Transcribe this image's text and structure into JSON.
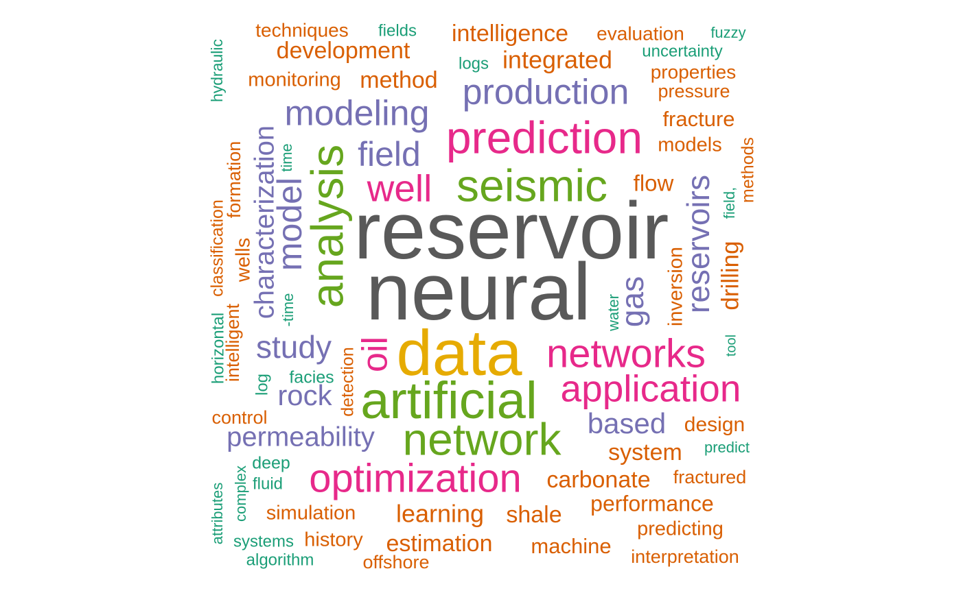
{
  "palette": {
    "gray": "#595959",
    "green": "#66a61e",
    "pink": "#e7298a",
    "purple": "#7570b3",
    "yellow": "#e6ab02",
    "orange": "#d95f02",
    "teal": "#1b9e77"
  },
  "words": [
    {
      "text": "reservoir",
      "color": "gray"
    },
    {
      "text": "neural",
      "color": "gray"
    },
    {
      "text": "data",
      "color": "yellow"
    },
    {
      "text": "artificial",
      "color": "green"
    },
    {
      "text": "network",
      "color": "green"
    },
    {
      "text": "seismic",
      "color": "green"
    },
    {
      "text": "analysis",
      "color": "green"
    },
    {
      "text": "prediction",
      "color": "pink"
    },
    {
      "text": "networks",
      "color": "pink"
    },
    {
      "text": "application",
      "color": "pink"
    },
    {
      "text": "optimization",
      "color": "pink"
    },
    {
      "text": "well",
      "color": "pink"
    },
    {
      "text": "oil",
      "color": "pink"
    },
    {
      "text": "production",
      "color": "purple"
    },
    {
      "text": "modeling",
      "color": "purple"
    },
    {
      "text": "field",
      "color": "purple"
    },
    {
      "text": "model",
      "color": "purple"
    },
    {
      "text": "characterization",
      "color": "purple"
    },
    {
      "text": "study",
      "color": "purple"
    },
    {
      "text": "rock",
      "color": "purple"
    },
    {
      "text": "permeability",
      "color": "purple"
    },
    {
      "text": "based",
      "color": "purple"
    },
    {
      "text": "reservoirs",
      "color": "purple"
    },
    {
      "text": "gas",
      "color": "purple"
    },
    {
      "text": "intelligence",
      "color": "orange"
    },
    {
      "text": "development",
      "color": "orange"
    },
    {
      "text": "integrated",
      "color": "orange"
    },
    {
      "text": "method",
      "color": "orange"
    },
    {
      "text": "techniques",
      "color": "orange"
    },
    {
      "text": "monitoring",
      "color": "orange"
    },
    {
      "text": "evaluation",
      "color": "orange"
    },
    {
      "text": "properties",
      "color": "orange"
    },
    {
      "text": "pressure",
      "color": "orange"
    },
    {
      "text": "fracture",
      "color": "orange"
    },
    {
      "text": "models",
      "color": "orange"
    },
    {
      "text": "flow",
      "color": "orange"
    },
    {
      "text": "methods",
      "color": "orange"
    },
    {
      "text": "formation",
      "color": "orange"
    },
    {
      "text": "wells",
      "color": "orange"
    },
    {
      "text": "classification",
      "color": "orange"
    },
    {
      "text": "intelligent",
      "color": "orange"
    },
    {
      "text": "inversion",
      "color": "orange"
    },
    {
      "text": "drilling",
      "color": "orange"
    },
    {
      "text": "detection",
      "color": "orange"
    },
    {
      "text": "control",
      "color": "orange"
    },
    {
      "text": "system",
      "color": "orange"
    },
    {
      "text": "design",
      "color": "orange"
    },
    {
      "text": "carbonate",
      "color": "orange"
    },
    {
      "text": "fractured",
      "color": "orange"
    },
    {
      "text": "performance",
      "color": "orange"
    },
    {
      "text": "simulation",
      "color": "orange"
    },
    {
      "text": "learning",
      "color": "orange"
    },
    {
      "text": "shale",
      "color": "orange"
    },
    {
      "text": "predicting",
      "color": "orange"
    },
    {
      "text": "history",
      "color": "orange"
    },
    {
      "text": "estimation",
      "color": "orange"
    },
    {
      "text": "machine",
      "color": "orange"
    },
    {
      "text": "offshore",
      "color": "orange"
    },
    {
      "text": "interpretation",
      "color": "orange"
    },
    {
      "text": "fields",
      "color": "teal"
    },
    {
      "text": "fuzzy",
      "color": "teal"
    },
    {
      "text": "uncertainty",
      "color": "teal"
    },
    {
      "text": "logs",
      "color": "teal"
    },
    {
      "text": "hydraulic",
      "color": "teal"
    },
    {
      "text": "time",
      "color": "teal"
    },
    {
      "text": "field,",
      "color": "teal"
    },
    {
      "text": "-time",
      "color": "teal"
    },
    {
      "text": "horizontal",
      "color": "teal"
    },
    {
      "text": "water",
      "color": "teal"
    },
    {
      "text": "tool",
      "color": "teal"
    },
    {
      "text": "facies",
      "color": "teal"
    },
    {
      "text": "log",
      "color": "teal"
    },
    {
      "text": "predict",
      "color": "teal"
    },
    {
      "text": "deep",
      "color": "teal"
    },
    {
      "text": "fluid",
      "color": "teal"
    },
    {
      "text": "complex",
      "color": "teal"
    },
    {
      "text": "attributes",
      "color": "teal"
    },
    {
      "text": "systems",
      "color": "teal"
    },
    {
      "text": "algorithm",
      "color": "teal"
    }
  ]
}
